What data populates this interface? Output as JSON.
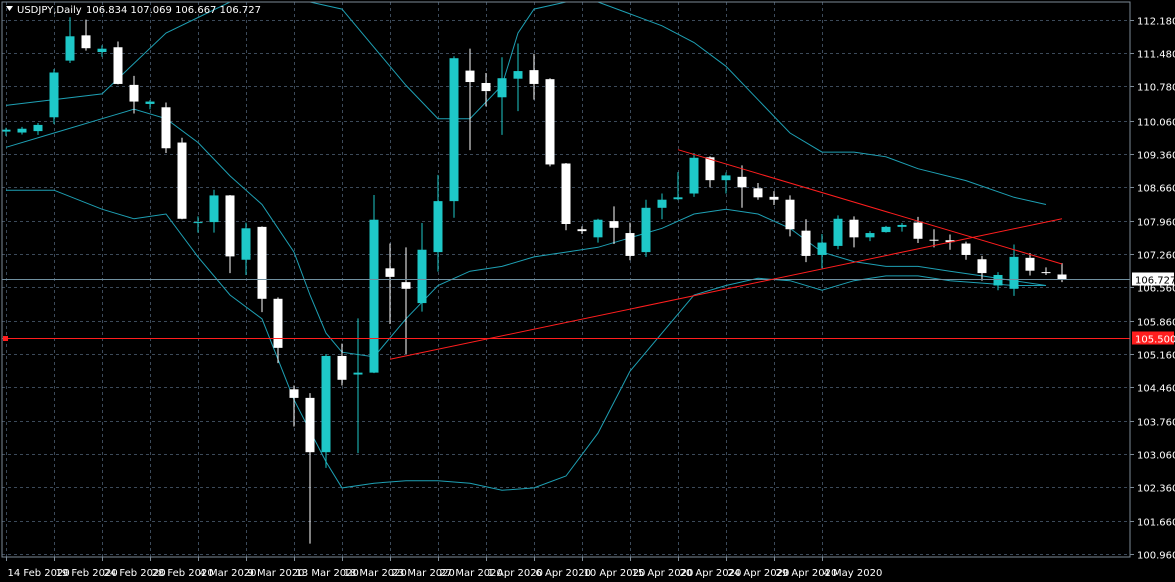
{
  "header": {
    "title": "USDJPY,Daily",
    "ohlc": "106.834 107.069 106.667 106.727"
  },
  "chart_data": {
    "type": "candlestick",
    "symbol": "USDJPY",
    "timeframe": "Daily",
    "ylim": [
      100.9,
      112.55
    ],
    "y_ticks": [
      "112.180",
      "111.480",
      "110.780",
      "110.060",
      "109.360",
      "108.660",
      "107.960",
      "107.260",
      "106.560",
      "105.860",
      "105.160",
      "104.460",
      "103.760",
      "103.060",
      "102.360",
      "101.660",
      "100.960"
    ],
    "x_labels": [
      "14 Feb 2020",
      "19 Feb 2020",
      "24 Feb 2020",
      "28 Feb 2020",
      "4 Mar 2020",
      "9 Mar 2020",
      "13 Mar 2020",
      "18 Mar 2020",
      "23 Mar 2020",
      "27 Mar 2020",
      "1 Apr 2020",
      "6 Apr 2020",
      "10 Apr 2020",
      "15 Apr 2020",
      "20 Apr 2020",
      "24 Apr 2020",
      "29 Apr 2020",
      "4 May 2020"
    ],
    "x_label_index": [
      0,
      3,
      6,
      9,
      12,
      15,
      18,
      21,
      24,
      27,
      30,
      33,
      36,
      39,
      42,
      45,
      48,
      51
    ],
    "grid": true,
    "colors": {
      "background": "#000000",
      "grid": "#3c4a5a",
      "bull": "#1ec8c8",
      "bear": "#ffffff",
      "bands": "#1ea0b4",
      "trendline": "#ff1e1e",
      "price_line": "#7090a0",
      "support_line": "#ff1e1e"
    },
    "candles": [
      {
        "o": 109.83,
        "h": 109.91,
        "l": 109.74,
        "c": 109.87
      },
      {
        "o": 109.81,
        "h": 109.93,
        "l": 109.77,
        "c": 109.89
      },
      {
        "o": 109.84,
        "h": 110.01,
        "l": 109.76,
        "c": 109.97
      },
      {
        "o": 110.13,
        "h": 111.14,
        "l": 109.99,
        "c": 111.07
      },
      {
        "o": 111.32,
        "h": 112.23,
        "l": 111.27,
        "c": 111.83
      },
      {
        "o": 111.85,
        "h": 112.18,
        "l": 111.53,
        "c": 111.58
      },
      {
        "o": 111.5,
        "h": 111.64,
        "l": 111.4,
        "c": 111.57
      },
      {
        "o": 111.6,
        "h": 111.72,
        "l": 110.82,
        "c": 110.83
      },
      {
        "o": 110.81,
        "h": 111.0,
        "l": 110.21,
        "c": 110.46
      },
      {
        "o": 110.41,
        "h": 110.49,
        "l": 110.3,
        "c": 110.46
      },
      {
        "o": 110.34,
        "h": 110.44,
        "l": 109.38,
        "c": 109.48
      },
      {
        "o": 109.6,
        "h": 109.7,
        "l": 107.99,
        "c": 108.0
      },
      {
        "o": 107.91,
        "h": 108.05,
        "l": 107.71,
        "c": 107.93
      },
      {
        "o": 107.93,
        "h": 108.61,
        "l": 107.71,
        "c": 108.49
      },
      {
        "o": 108.49,
        "h": 108.5,
        "l": 106.86,
        "c": 107.21
      },
      {
        "o": 107.14,
        "h": 107.92,
        "l": 106.82,
        "c": 107.8
      },
      {
        "o": 107.83,
        "h": 107.84,
        "l": 106.04,
        "c": 106.32
      },
      {
        "o": 106.32,
        "h": 106.35,
        "l": 104.97,
        "c": 105.29
      },
      {
        "o": 104.42,
        "h": 104.5,
        "l": 103.64,
        "c": 104.24
      },
      {
        "o": 104.24,
        "h": 104.34,
        "l": 101.18,
        "c": 103.1
      },
      {
        "o": 103.1,
        "h": 105.16,
        "l": 102.77,
        "c": 105.12
      },
      {
        "o": 105.12,
        "h": 105.38,
        "l": 104.5,
        "c": 104.62
      },
      {
        "o": 104.73,
        "h": 105.91,
        "l": 103.08,
        "c": 104.77
      },
      {
        "o": 104.77,
        "h": 108.5,
        "l": 104.76,
        "c": 107.98
      },
      {
        "o": 106.96,
        "h": 107.48,
        "l": 105.79,
        "c": 106.78
      },
      {
        "o": 106.67,
        "h": 107.4,
        "l": 105.16,
        "c": 106.53
      },
      {
        "o": 106.23,
        "h": 107.91,
        "l": 106.05,
        "c": 107.35
      },
      {
        "o": 107.3,
        "h": 108.92,
        "l": 106.89,
        "c": 108.37
      },
      {
        "o": 108.37,
        "h": 111.41,
        "l": 108.02,
        "c": 111.37
      },
      {
        "o": 111.11,
        "h": 111.57,
        "l": 109.44,
        "c": 110.87
      },
      {
        "o": 110.85,
        "h": 111.06,
        "l": 110.36,
        "c": 110.68
      },
      {
        "o": 110.55,
        "h": 111.39,
        "l": 109.76,
        "c": 110.95
      },
      {
        "o": 110.94,
        "h": 111.68,
        "l": 110.26,
        "c": 111.1
      },
      {
        "o": 111.12,
        "h": 111.46,
        "l": 110.5,
        "c": 110.83
      },
      {
        "o": 110.93,
        "h": 110.95,
        "l": 109.1,
        "c": 109.14
      },
      {
        "o": 109.16,
        "h": 109.17,
        "l": 107.76,
        "c": 107.89
      },
      {
        "o": 107.78,
        "h": 107.84,
        "l": 107.68,
        "c": 107.74
      },
      {
        "o": 107.61,
        "h": 108.0,
        "l": 107.5,
        "c": 107.98
      },
      {
        "o": 107.95,
        "h": 108.26,
        "l": 107.47,
        "c": 107.81
      },
      {
        "o": 107.7,
        "h": 107.92,
        "l": 107.13,
        "c": 107.22
      },
      {
        "o": 107.3,
        "h": 108.4,
        "l": 107.2,
        "c": 108.23
      },
      {
        "o": 108.23,
        "h": 108.53,
        "l": 107.99,
        "c": 108.4
      },
      {
        "o": 108.41,
        "h": 108.98,
        "l": 108.39,
        "c": 108.45
      },
      {
        "o": 108.53,
        "h": 109.38,
        "l": 108.46,
        "c": 109.28
      },
      {
        "o": 109.29,
        "h": 109.31,
        "l": 108.66,
        "c": 108.81
      },
      {
        "o": 108.81,
        "h": 108.97,
        "l": 108.53,
        "c": 108.91
      },
      {
        "o": 108.88,
        "h": 109.12,
        "l": 108.23,
        "c": 108.66
      },
      {
        "o": 108.64,
        "h": 108.75,
        "l": 108.4,
        "c": 108.45
      },
      {
        "o": 108.46,
        "h": 108.58,
        "l": 108.29,
        "c": 108.4
      },
      {
        "o": 108.4,
        "h": 108.49,
        "l": 107.63,
        "c": 107.78
      },
      {
        "o": 107.75,
        "h": 107.99,
        "l": 107.09,
        "c": 107.22
      },
      {
        "o": 107.24,
        "h": 107.68,
        "l": 106.96,
        "c": 107.5
      },
      {
        "o": 107.43,
        "h": 108.07,
        "l": 107.36,
        "c": 108.0
      },
      {
        "o": 107.98,
        "h": 108.05,
        "l": 107.4,
        "c": 107.61
      },
      {
        "o": 107.61,
        "h": 107.74,
        "l": 107.53,
        "c": 107.7
      },
      {
        "o": 107.72,
        "h": 107.85,
        "l": 107.71,
        "c": 107.83
      },
      {
        "o": 107.83,
        "h": 107.91,
        "l": 107.73,
        "c": 107.87
      },
      {
        "o": 107.92,
        "h": 108.04,
        "l": 107.49,
        "c": 107.58
      },
      {
        "o": 107.56,
        "h": 107.78,
        "l": 107.4,
        "c": 107.55
      },
      {
        "o": 107.55,
        "h": 107.67,
        "l": 107.35,
        "c": 107.51
      },
      {
        "o": 107.48,
        "h": 107.52,
        "l": 107.14,
        "c": 107.24
      },
      {
        "o": 107.15,
        "h": 107.22,
        "l": 106.7,
        "c": 106.86
      },
      {
        "o": 106.6,
        "h": 106.88,
        "l": 106.5,
        "c": 106.82
      },
      {
        "o": 106.53,
        "h": 107.46,
        "l": 106.38,
        "c": 107.2
      },
      {
        "o": 107.18,
        "h": 107.28,
        "l": 106.81,
        "c": 106.91
      },
      {
        "o": 106.88,
        "h": 106.98,
        "l": 106.82,
        "c": 106.87
      },
      {
        "o": 106.83,
        "h": 107.07,
        "l": 106.67,
        "c": 106.73
      }
    ],
    "bollinger_upper": [
      [
        0,
        110.38
      ],
      [
        6,
        110.62
      ],
      [
        10,
        111.9
      ],
      [
        14,
        112.55
      ],
      [
        19,
        112.55
      ],
      [
        21,
        112.4
      ],
      [
        23,
        111.6
      ],
      [
        25,
        110.8
      ],
      [
        27,
        110.1
      ],
      [
        29,
        110.1
      ],
      [
        31,
        110.8
      ],
      [
        32,
        111.9
      ],
      [
        33,
        112.4
      ],
      [
        35,
        112.55
      ],
      [
        37,
        112.55
      ],
      [
        39,
        112.3
      ],
      [
        41,
        112.05
      ],
      [
        43,
        111.7
      ],
      [
        45,
        111.2
      ],
      [
        47,
        110.5
      ],
      [
        49,
        109.8
      ],
      [
        51,
        109.4
      ],
      [
        53,
        109.4
      ],
      [
        55,
        109.3
      ],
      [
        57,
        109.05
      ],
      [
        60,
        108.8
      ],
      [
        63,
        108.45
      ],
      [
        65,
        108.3
      ]
    ],
    "bollinger_middle": [
      [
        0,
        109.5
      ],
      [
        3,
        109.8
      ],
      [
        6,
        110.1
      ],
      [
        8,
        110.3
      ],
      [
        10,
        110.1
      ],
      [
        12,
        109.6
      ],
      [
        14,
        108.9
      ],
      [
        16,
        108.3
      ],
      [
        18,
        107.3
      ],
      [
        19,
        106.4
      ],
      [
        20,
        105.6
      ],
      [
        21,
        105.2
      ],
      [
        23,
        105.1
      ],
      [
        25,
        105.9
      ],
      [
        27,
        106.6
      ],
      [
        29,
        106.9
      ],
      [
        31,
        107.0
      ],
      [
        33,
        107.2
      ],
      [
        35,
        107.3
      ],
      [
        37,
        107.4
      ],
      [
        39,
        107.6
      ],
      [
        41,
        107.8
      ],
      [
        43,
        108.1
      ],
      [
        45,
        108.2
      ],
      [
        47,
        108.1
      ],
      [
        49,
        107.8
      ],
      [
        51,
        107.3
      ],
      [
        53,
        107.1
      ],
      [
        55,
        107.0
      ],
      [
        57,
        107.0
      ],
      [
        59,
        106.9
      ],
      [
        61,
        106.8
      ],
      [
        63,
        106.7
      ],
      [
        65,
        106.6
      ]
    ],
    "bollinger_lower": [
      [
        0,
        108.6
      ],
      [
        3,
        108.6
      ],
      [
        6,
        108.2
      ],
      [
        8,
        108.0
      ],
      [
        10,
        108.1
      ],
      [
        12,
        107.2
      ],
      [
        14,
        106.4
      ],
      [
        16,
        105.9
      ],
      [
        18,
        104.2
      ],
      [
        20,
        102.9
      ],
      [
        21,
        102.35
      ],
      [
        23,
        102.45
      ],
      [
        25,
        102.5
      ],
      [
        27,
        102.5
      ],
      [
        29,
        102.45
      ],
      [
        31,
        102.3
      ],
      [
        33,
        102.35
      ],
      [
        35,
        102.6
      ],
      [
        37,
        103.5
      ],
      [
        39,
        104.8
      ],
      [
        41,
        105.6
      ],
      [
        43,
        106.4
      ],
      [
        45,
        106.6
      ],
      [
        47,
        106.75
      ],
      [
        49,
        106.7
      ],
      [
        51,
        106.5
      ],
      [
        53,
        106.7
      ],
      [
        55,
        106.8
      ],
      [
        57,
        106.8
      ],
      [
        59,
        106.7
      ],
      [
        61,
        106.65
      ],
      [
        63,
        106.6
      ],
      [
        65,
        106.6
      ]
    ],
    "trendlines": [
      {
        "from": [
          24,
          105.05
        ],
        "to": [
          66,
          108.0
        ]
      },
      {
        "from": [
          42,
          109.45
        ],
        "to": [
          66,
          107.05
        ]
      }
    ],
    "price_line": {
      "value": 106.727,
      "label": "106.727"
    },
    "support_line": {
      "value": 105.5,
      "label": "105.500"
    }
  }
}
